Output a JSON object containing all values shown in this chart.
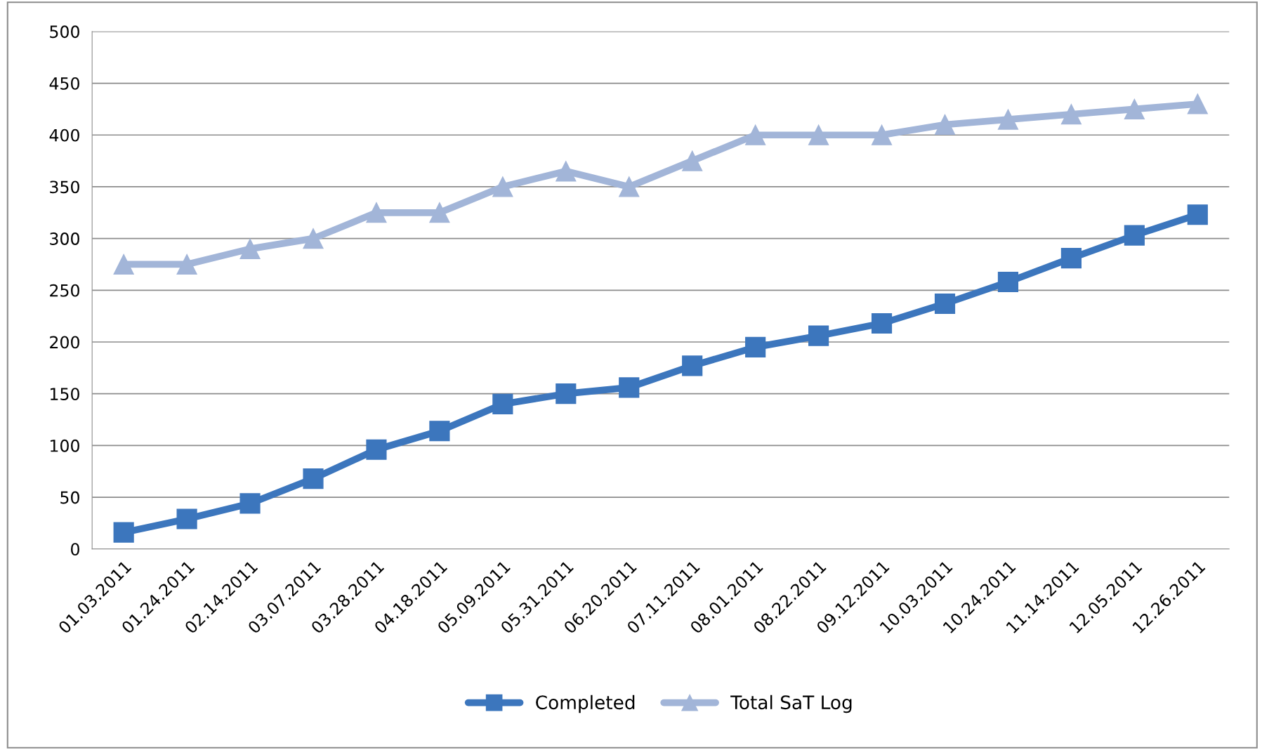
{
  "chart_data": {
    "type": "line",
    "categories": [
      "01.03.2011",
      "01.24.2011",
      "02.14.2011",
      "03.07.2011",
      "03.28.2011",
      "04.18.2011",
      "05.09.2011",
      "05.31.2011",
      "06.20.2011",
      "07.11.2011",
      "08.01.2011",
      "08.22.2011",
      "09.12.2011",
      "10.03.2011",
      "10.24.2011",
      "11.14.2011",
      "12.05.2011",
      "12.26.2011"
    ],
    "series": [
      {
        "name": "Completed",
        "color": "#3c76bd",
        "marker": "square",
        "values": [
          16,
          29,
          44,
          68,
          96,
          114,
          140,
          150,
          156,
          177,
          195,
          206,
          218,
          237,
          258,
          281,
          303,
          323
        ]
      },
      {
        "name": "Total SaT Log",
        "color": "#a2b5d8",
        "marker": "triangle",
        "values": [
          275,
          275,
          290,
          300,
          325,
          325,
          350,
          365,
          350,
          375,
          400,
          400,
          400,
          410,
          415,
          420,
          425,
          430
        ]
      }
    ],
    "ylim": [
      0,
      500
    ],
    "yticks": [
      0,
      50,
      100,
      150,
      200,
      250,
      300,
      350,
      400,
      450,
      500
    ],
    "grid": "y",
    "legend": "bottom",
    "line_style": "solid"
  }
}
